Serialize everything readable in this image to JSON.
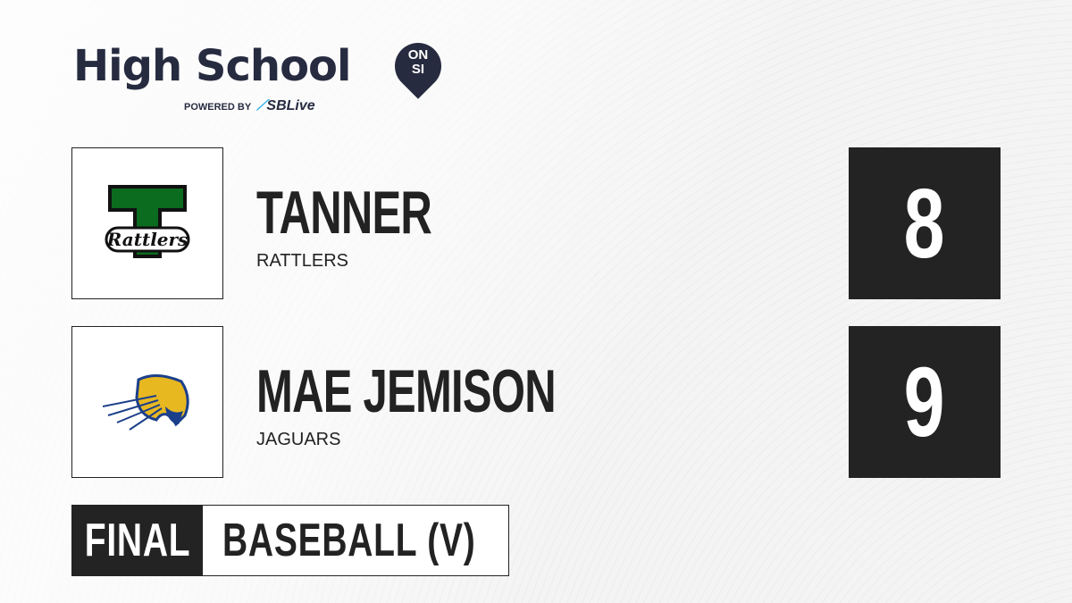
{
  "brand": {
    "title": "High School",
    "badge_top": "ON",
    "badge_bottom": "SI",
    "powered_by": "POWERED BY",
    "partner_s": "S",
    "partner_rest": "SBLive"
  },
  "teams": [
    {
      "name": "TANNER",
      "mascot": "RATTLERS",
      "score": "8",
      "logo_text": "Rattlers",
      "logo_letter": "T",
      "logo_color": "#0b6b1e"
    },
    {
      "name": "MAE JEMISON",
      "mascot": "JAGUARS",
      "score": "9",
      "logo_color": "#e8b820"
    }
  ],
  "game": {
    "status": "FINAL",
    "sport": "BASEBALL (V)"
  }
}
